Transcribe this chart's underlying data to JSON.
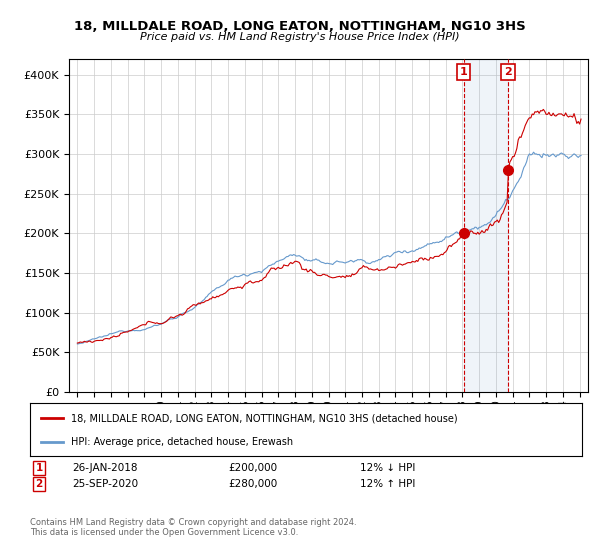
{
  "title": "18, MILLDALE ROAD, LONG EATON, NOTTINGHAM, NG10 3HS",
  "subtitle": "Price paid vs. HM Land Registry's House Price Index (HPI)",
  "legend_line1": "18, MILLDALE ROAD, LONG EATON, NOTTINGHAM, NG10 3HS (detached house)",
  "legend_line2": "HPI: Average price, detached house, Erewash",
  "footnote": "Contains HM Land Registry data © Crown copyright and database right 2024.\nThis data is licensed under the Open Government Licence v3.0.",
  "sale1_date": "26-JAN-2018",
  "sale1_price": 200000,
  "sale1_hpi": "12% ↓ HPI",
  "sale2_date": "25-SEP-2020",
  "sale2_price": 280000,
  "sale2_hpi": "12% ↑ HPI",
  "sale1_x": 2018.07,
  "sale2_x": 2020.73,
  "red_color": "#cc0000",
  "blue_color": "#6699cc",
  "bg_color": "#ffffff",
  "grid_color": "#cccccc",
  "ylim_min": 0,
  "ylim_max": 420000,
  "xlim_min": 1994.5,
  "xlim_max": 2025.5,
  "yticks": [
    0,
    50000,
    100000,
    150000,
    200000,
    250000,
    300000,
    350000,
    400000
  ],
  "xtick_years": [
    1995,
    1996,
    1997,
    1998,
    1999,
    2000,
    2001,
    2002,
    2003,
    2004,
    2005,
    2006,
    2007,
    2008,
    2009,
    2010,
    2011,
    2012,
    2013,
    2014,
    2015,
    2016,
    2017,
    2018,
    2019,
    2020,
    2021,
    2022,
    2023,
    2024,
    2025
  ]
}
